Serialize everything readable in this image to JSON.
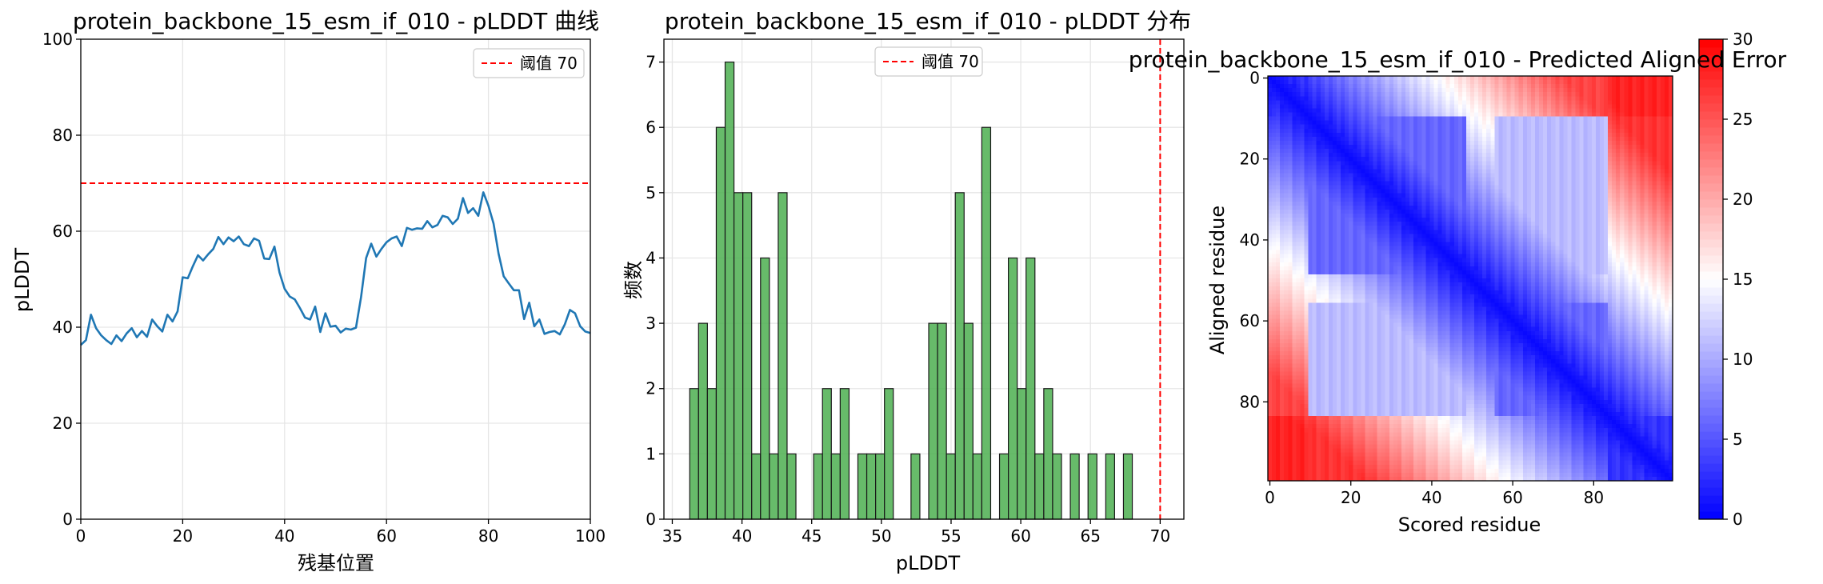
{
  "chart_data": [
    {
      "type": "line",
      "title": "protein_backbone_15_esm_if_010 - pLDDT 曲线",
      "xlabel": "残基位置",
      "ylabel": "pLDDT",
      "xlim": [
        0,
        100
      ],
      "ylim": [
        0,
        100
      ],
      "xticks": [
        0,
        20,
        40,
        60,
        80,
        100
      ],
      "yticks": [
        0,
        20,
        40,
        60,
        80,
        100
      ],
      "grid": true,
      "legend_position": "top-right",
      "line_color": "#1f77b4",
      "threshold": {
        "value": 70,
        "label": "阈值 70",
        "color": "#ff0000"
      },
      "series": [
        {
          "x": [
            0,
            1,
            2,
            3,
            4,
            5,
            6,
            7,
            8,
            9,
            10,
            11,
            12,
            13,
            14,
            15,
            16,
            17,
            18,
            19,
            20,
            21,
            22,
            23,
            24,
            25,
            26,
            27,
            28,
            29,
            30,
            31,
            32,
            33,
            34,
            35,
            36,
            37,
            38,
            39,
            40,
            41,
            42,
            43,
            44,
            45,
            46,
            47,
            48,
            49,
            50,
            51,
            52,
            53,
            54,
            55,
            56,
            57,
            58,
            59,
            60,
            61,
            62,
            63,
            64,
            65,
            66,
            67,
            68,
            69,
            70,
            71,
            72,
            73,
            74,
            75,
            76,
            77,
            78,
            79,
            80,
            81,
            82,
            83,
            84,
            85,
            86,
            87,
            88,
            89,
            90,
            91,
            92,
            93,
            94,
            95,
            96,
            97,
            98,
            99,
            100
          ],
          "values": [
            36.3,
            37.3,
            42.6,
            39.8,
            38.3,
            37.3,
            36.5,
            38.3,
            37.1,
            38.7,
            39.8,
            37.9,
            39.2,
            38.0,
            41.6,
            40.2,
            39.1,
            42.6,
            41.2,
            43.3,
            50.4,
            50.2,
            52.7,
            55.0,
            53.9,
            55.2,
            56.3,
            58.8,
            57.3,
            58.7,
            57.9,
            58.9,
            57.3,
            56.9,
            58.5,
            58.0,
            54.3,
            54.2,
            56.8,
            51.4,
            48.0,
            46.4,
            45.8,
            44.0,
            42.0,
            41.6,
            44.3,
            39.0,
            42.9,
            40.1,
            40.3,
            38.9,
            39.7,
            39.5,
            39.9,
            46.3,
            54.4,
            57.4,
            54.7,
            56.3,
            57.7,
            58.5,
            58.9,
            56.9,
            60.7,
            60.3,
            60.6,
            60.5,
            62.1,
            60.8,
            61.3,
            63.2,
            62.9,
            61.5,
            62.6,
            66.9,
            63.8,
            64.8,
            63.2,
            68.1,
            65.3,
            61.6,
            55.3,
            50.6,
            49.1,
            47.7,
            47.7,
            41.7,
            45.1,
            40.2,
            41.6,
            38.6,
            39.0,
            39.2,
            38.5,
            40.6,
            43.6,
            42.9,
            40.2,
            39.1,
            38.8
          ]
        }
      ]
    },
    {
      "type": "bar",
      "title": "protein_backbone_15_esm_if_010 - pLDDT 分布",
      "xlabel": "pLDDT",
      "ylabel": "频数",
      "xlim": [
        34.4,
        71.7
      ],
      "ylim": [
        0,
        7.35
      ],
      "xticks": [
        35,
        40,
        45,
        50,
        55,
        60,
        65,
        70
      ],
      "yticks": [
        0,
        1,
        2,
        3,
        4,
        5,
        6,
        7
      ],
      "grid": true,
      "legend_position": "top-center",
      "bar_color": "#4caf50",
      "threshold": {
        "value": 70,
        "label": "阈值 70",
        "color": "#ff0000"
      },
      "bin_start": 36.25,
      "bin_width": 0.635,
      "values": [
        2,
        3,
        2,
        6,
        7,
        5,
        5,
        1,
        4,
        1,
        5,
        1,
        0,
        0,
        1,
        2,
        1,
        2,
        0,
        1,
        1,
        1,
        2,
        0,
        0,
        1,
        0,
        3,
        3,
        1,
        5,
        3,
        1,
        6,
        0,
        1,
        4,
        2,
        4,
        1,
        2,
        1,
        0,
        1,
        0,
        1,
        0,
        1,
        0,
        1
      ]
    },
    {
      "type": "heatmap",
      "title": "protein_backbone_15_esm_if_010 - Predicted Aligned Error",
      "xlabel": "Scored residue",
      "ylabel": "Aligned residue",
      "size": 100,
      "xticks": [
        0,
        20,
        40,
        60,
        80
      ],
      "yticks": [
        0,
        20,
        40,
        60,
        80
      ],
      "colormap": "bwr",
      "colorbar": {
        "min": 0,
        "max": 30,
        "ticks": [
          0,
          5,
          10,
          15,
          20,
          25,
          30
        ]
      },
      "domains": [
        [
          0,
          9
        ],
        [
          10,
          48
        ],
        [
          49,
          55
        ],
        [
          56,
          83
        ],
        [
          84,
          99
        ]
      ],
      "domain_pae": [
        [
          3,
          27,
          28,
          26,
          28
        ],
        [
          27,
          6,
          17,
          11,
          27
        ],
        [
          28,
          17,
          3,
          28,
          26
        ],
        [
          26,
          11,
          28,
          6,
          26
        ],
        [
          28,
          27,
          26,
          26,
          3
        ]
      ]
    }
  ]
}
